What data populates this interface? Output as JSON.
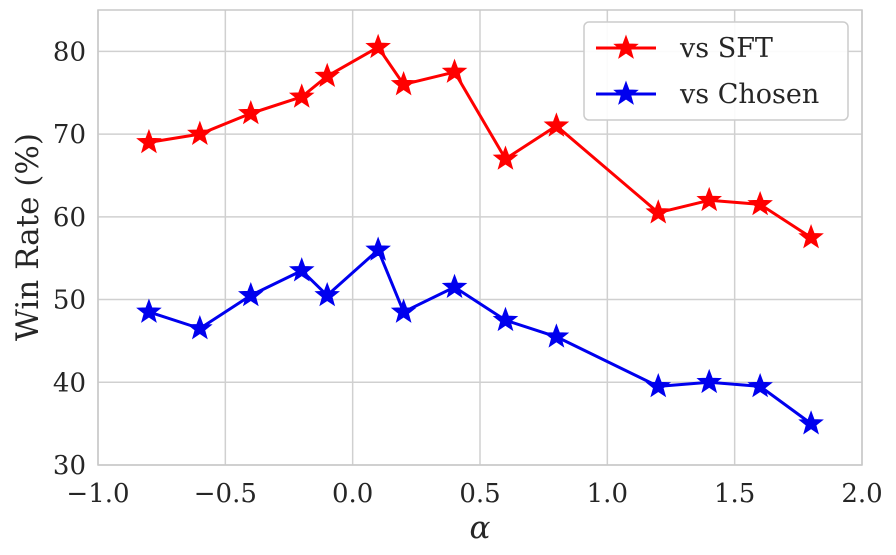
{
  "chart_data": {
    "type": "line",
    "xlabel": "α",
    "ylabel": "Win Rate (%)",
    "xlim": [
      -1.0,
      2.0
    ],
    "ylim": [
      30,
      85
    ],
    "xticks": [
      -1.0,
      -0.5,
      0.0,
      0.5,
      1.0,
      1.5,
      2.0
    ],
    "xtick_labels": [
      "−1.0",
      "−0.5",
      "0.0",
      "0.5",
      "1.0",
      "1.5",
      "2.0"
    ],
    "yticks": [
      30,
      40,
      50,
      60,
      70,
      80
    ],
    "ytick_labels": [
      "30",
      "40",
      "50",
      "60",
      "70",
      "80"
    ],
    "grid": true,
    "legend_position": "top-right",
    "marker": "star",
    "series": [
      {
        "name": "vs SFT",
        "color": "#ff0000",
        "x": [
          -0.8,
          -0.6,
          -0.4,
          -0.2,
          -0.1,
          0.1,
          0.2,
          0.4,
          0.6,
          0.8,
          1.2,
          1.4,
          1.6,
          1.8
        ],
        "y": [
          69.0,
          70.0,
          72.5,
          74.5,
          77.0,
          80.5,
          76.0,
          77.5,
          67.0,
          71.0,
          60.5,
          62.0,
          61.5,
          57.5
        ]
      },
      {
        "name": "vs Chosen",
        "color": "#0000ee",
        "x": [
          -0.8,
          -0.6,
          -0.4,
          -0.2,
          -0.1,
          0.1,
          0.2,
          0.4,
          0.6,
          0.8,
          1.2,
          1.4,
          1.6,
          1.8
        ],
        "y": [
          48.5,
          46.5,
          50.5,
          53.5,
          50.5,
          56.0,
          48.5,
          51.5,
          47.5,
          45.5,
          39.5,
          40.0,
          39.5,
          35.0
        ]
      }
    ]
  }
}
